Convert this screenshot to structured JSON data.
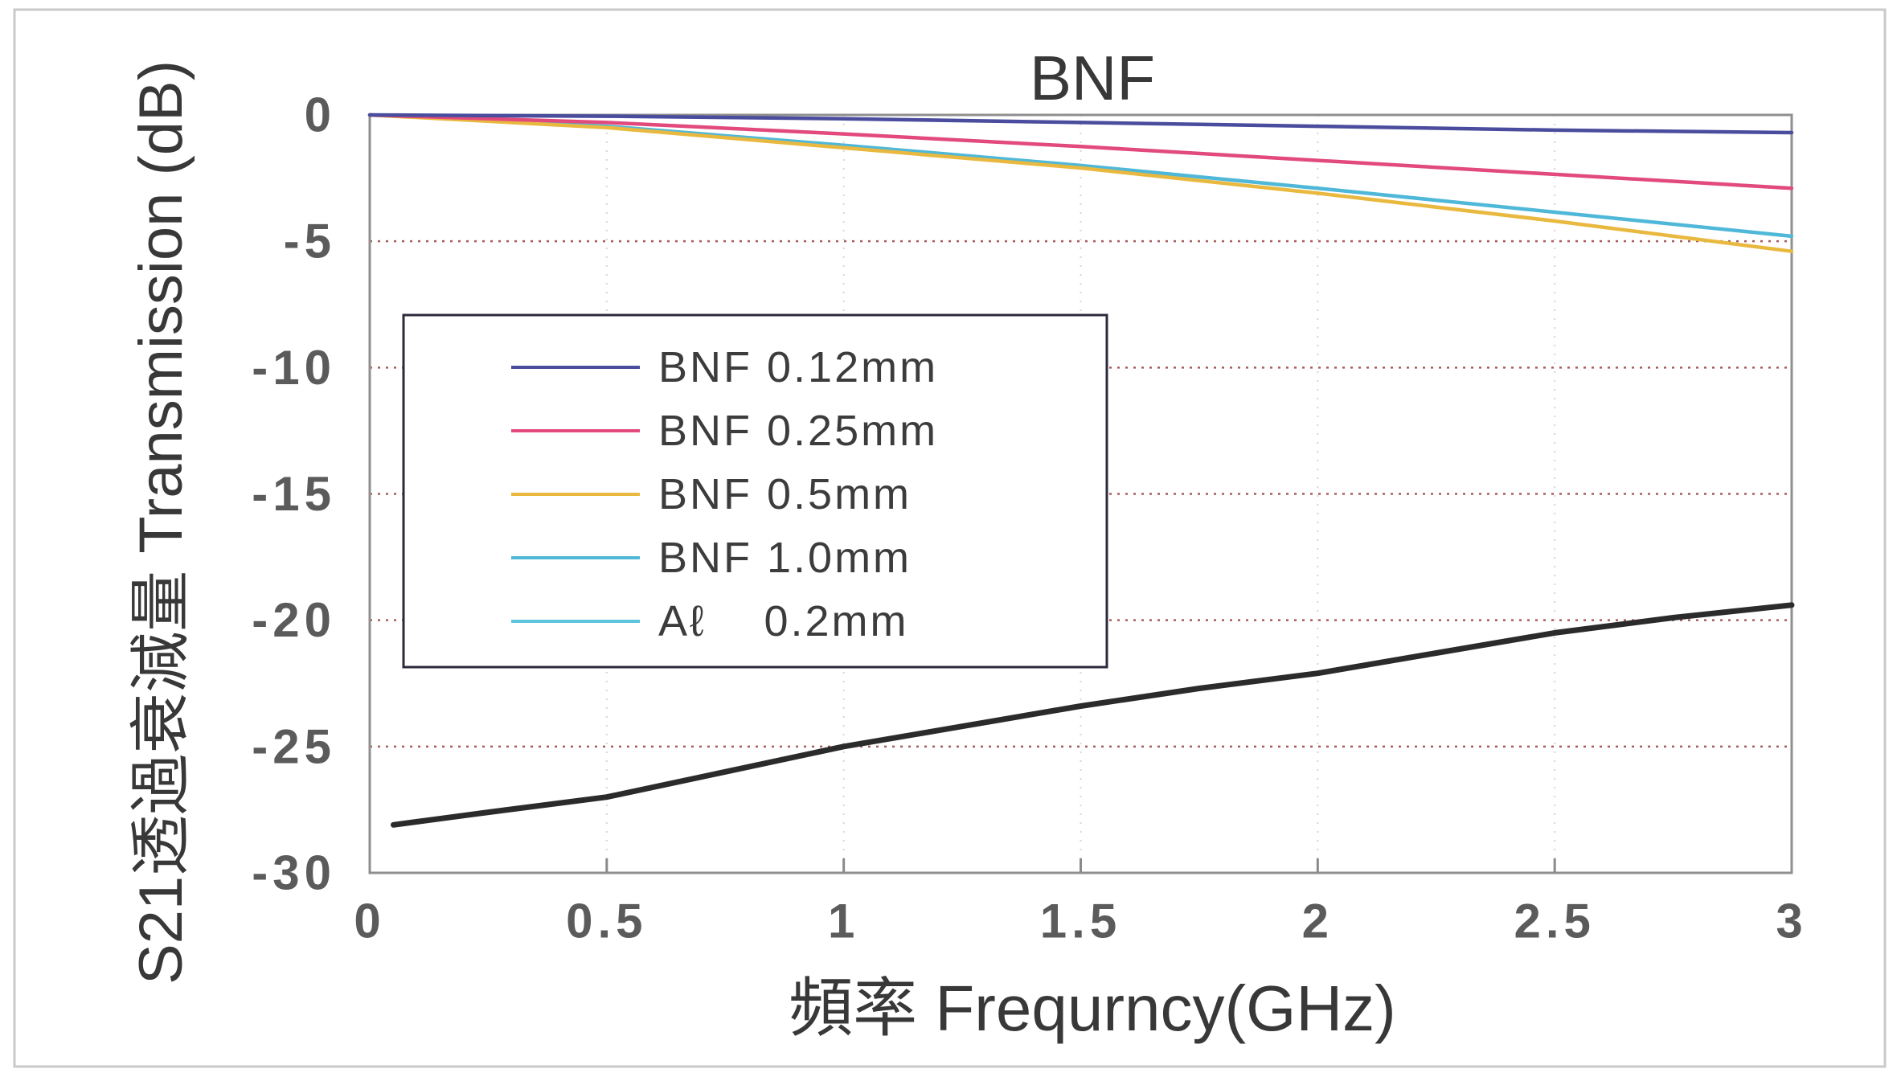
{
  "chart_data": {
    "type": "line",
    "title": "BNF",
    "xlabel": "頻率 Frequrncy(GHz)",
    "ylabel": "S21透過衰減量 Transmission (dB)",
    "xlim": [
      0,
      3
    ],
    "ylim": [
      -30,
      0
    ],
    "xticks": [
      0,
      0.5,
      1,
      1.5,
      2,
      2.5,
      3
    ],
    "xtick_labels": [
      "0",
      "0.5",
      "1",
      "1.5",
      "2",
      "2.5",
      "3"
    ],
    "yticks": [
      0,
      -5,
      -10,
      -15,
      -20,
      -25,
      -30
    ],
    "ytick_labels": [
      "0",
      "-5",
      "-10",
      "-15",
      "-20",
      "-25",
      "-30"
    ],
    "grid": true,
    "legend_position": "center-left",
    "series": [
      {
        "name": "BNF 0.12mm",
        "color": "#4a4c9e",
        "legend_color": "#4a4c9e",
        "x": [
          0,
          0.5,
          1,
          1.5,
          2,
          2.5,
          3
        ],
        "y": [
          0,
          -0.05,
          -0.15,
          -0.3,
          -0.45,
          -0.6,
          -0.7
        ]
      },
      {
        "name": "BNF 0.25mm",
        "color": "#e24a7c",
        "legend_color": "#e24a7c",
        "x": [
          0,
          0.5,
          1,
          1.5,
          2,
          2.5,
          3
        ],
        "y": [
          0,
          -0.3,
          -0.75,
          -1.25,
          -1.8,
          -2.35,
          -2.9
        ]
      },
      {
        "name": "BNF 0.5mm",
        "color": "#e9b83f",
        "legend_color": "#e9b83f",
        "x": [
          0,
          0.5,
          1,
          1.5,
          2,
          2.5,
          3
        ],
        "y": [
          0,
          -0.5,
          -1.3,
          -2.1,
          -3.1,
          -4.2,
          -5.4
        ]
      },
      {
        "name": "BNF 1.0mm",
        "color": "#4fb8d8",
        "legend_color": "#4fb8d8",
        "x": [
          0,
          0.5,
          1,
          1.5,
          2,
          2.5,
          3
        ],
        "y": [
          0,
          -0.45,
          -1.2,
          -2.0,
          -2.9,
          -3.85,
          -4.8
        ]
      },
      {
        "name": "Aℓ    0.2mm",
        "color": "#2b2b2b",
        "legend_color": "#5ec4de",
        "x": [
          0.05,
          0.25,
          0.5,
          0.75,
          1,
          1.25,
          1.5,
          1.75,
          2,
          2.25,
          2.5,
          2.75,
          3
        ],
        "y": [
          -28.1,
          -27.6,
          -27.0,
          -26.0,
          -25.0,
          -24.2,
          -23.4,
          -22.7,
          -22.1,
          -21.3,
          -20.5,
          -19.9,
          -19.4
        ]
      }
    ]
  }
}
